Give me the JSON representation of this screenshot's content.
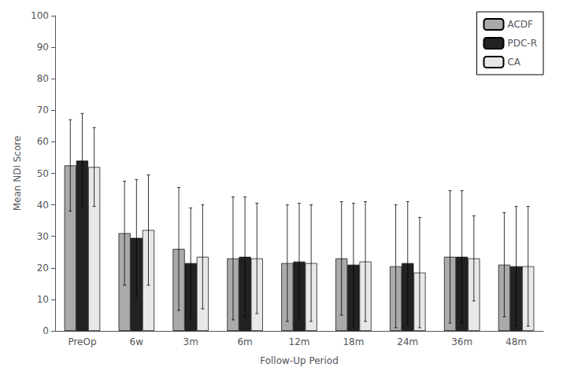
{
  "chart_data": {
    "type": "bar",
    "categories": [
      "PreOp",
      "6w",
      "3m",
      "6m",
      "12m",
      "18m",
      "24m",
      "36m",
      "48m"
    ],
    "series": [
      {
        "name": "ACDF",
        "color": "#aaaaaa",
        "values": [
          52.5,
          31.0,
          26.0,
          23.0,
          21.5,
          23.0,
          20.5,
          23.5,
          21.0
        ],
        "errors": [
          14.5,
          16.5,
          19.5,
          19.5,
          18.5,
          18.0,
          19.5,
          21.0,
          16.5
        ]
      },
      {
        "name": "PDC-R",
        "color": "#222222",
        "values": [
          54.0,
          29.5,
          21.5,
          23.5,
          22.0,
          21.0,
          21.5,
          23.5,
          20.5
        ],
        "errors": [
          15.0,
          18.5,
          17.5,
          19.0,
          18.5,
          19.5,
          19.5,
          21.0,
          19.0
        ]
      },
      {
        "name": "CA",
        "color": "#e8e8e8",
        "values": [
          52.0,
          32.0,
          23.5,
          23.0,
          21.5,
          22.0,
          18.5,
          23.0,
          20.5
        ],
        "errors": [
          12.5,
          17.5,
          16.5,
          17.5,
          18.5,
          19.0,
          17.5,
          13.5,
          19.0
        ]
      }
    ],
    "xlabel": "Follow-Up Period",
    "ylabel": "Mean NDI Score",
    "ylim": [
      0,
      100
    ],
    "yticks": [
      0,
      10,
      20,
      30,
      40,
      50,
      60,
      70,
      80,
      90,
      100
    ],
    "grid": false,
    "legend": "upper right"
  }
}
